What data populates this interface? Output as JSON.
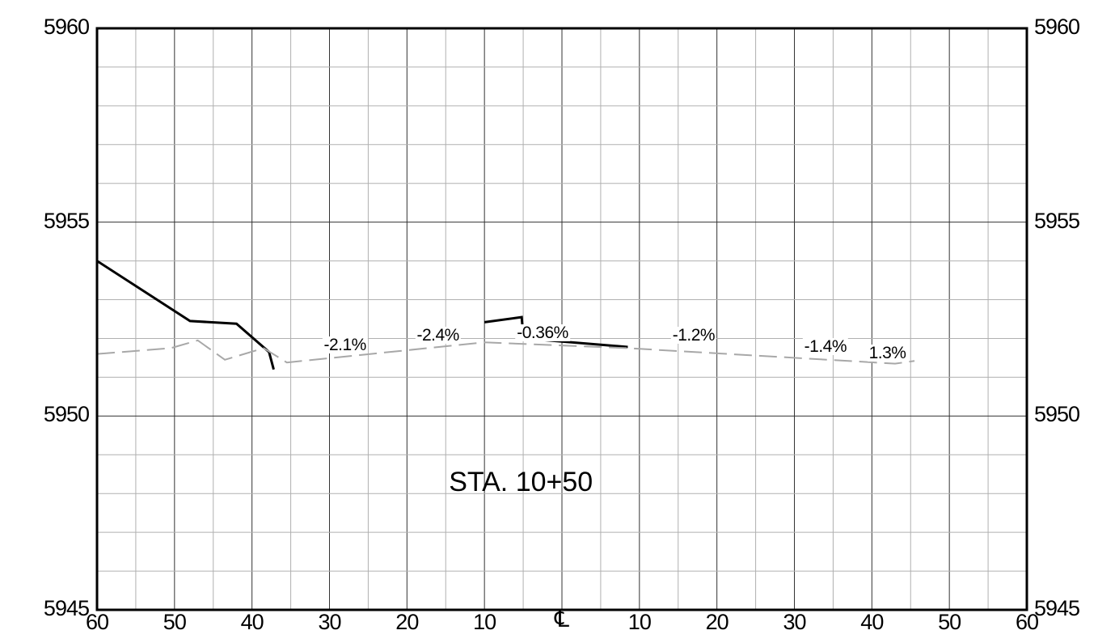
{
  "chart_data": {
    "type": "line",
    "title": "STA. 10+50",
    "xlabel": "",
    "ylabel": "",
    "centerline_label": "℄",
    "x_range": [
      -60,
      60
    ],
    "y_range": [
      5945,
      5960
    ],
    "y_ticks": [
      "5945",
      "5950",
      "5955",
      "5960"
    ],
    "x_tick_labels": [
      "60",
      "50",
      "40",
      "30",
      "20",
      "10",
      "",
      "10",
      "20",
      "30",
      "40",
      "50",
      "60"
    ],
    "x_tick_values": [
      -60,
      -50,
      -40,
      -30,
      -20,
      -10,
      0,
      10,
      20,
      30,
      40,
      50,
      60
    ],
    "grid": true,
    "series": [
      {
        "style": "solid-black",
        "segments": [
          [
            [
              -60,
              5954.0
            ],
            [
              -48,
              5952.45
            ],
            [
              -42,
              5952.38
            ],
            [
              -37.8,
              5951.65
            ],
            [
              -37.2,
              5951.2
            ]
          ],
          [
            [
              -10,
              5952.42
            ],
            [
              -5.2,
              5952.55
            ],
            [
              -5.0,
              5952.1
            ],
            [
              -4.8,
              5952.0
            ],
            [
              8.5,
              5951.78
            ]
          ]
        ]
      },
      {
        "style": "dashed-gray",
        "points": [
          [
            -60,
            5951.6
          ],
          [
            -50.5,
            5951.75
          ],
          [
            -47,
            5951.95
          ],
          [
            -43.5,
            5951.45
          ],
          [
            -38.5,
            5951.75
          ],
          [
            -35.5,
            5951.38
          ],
          [
            -10,
            5951.9
          ],
          [
            8.5,
            5951.75
          ],
          [
            43,
            5951.35
          ],
          [
            45.5,
            5951.42
          ]
        ]
      }
    ],
    "annotations": [
      {
        "text": "-2.1%",
        "x": -28,
        "y": 5951.8
      },
      {
        "text": "-2.4%",
        "x": -16,
        "y": 5952.05
      },
      {
        "text": "-0.36%",
        "x": -2.5,
        "y": 5952.12
      },
      {
        "text": "-1.2%",
        "x": 17,
        "y": 5952.05
      },
      {
        "text": "-1.4%",
        "x": 34,
        "y": 5951.75
      },
      {
        "text": "1.3%",
        "x": 42,
        "y": 5951.6
      }
    ]
  }
}
